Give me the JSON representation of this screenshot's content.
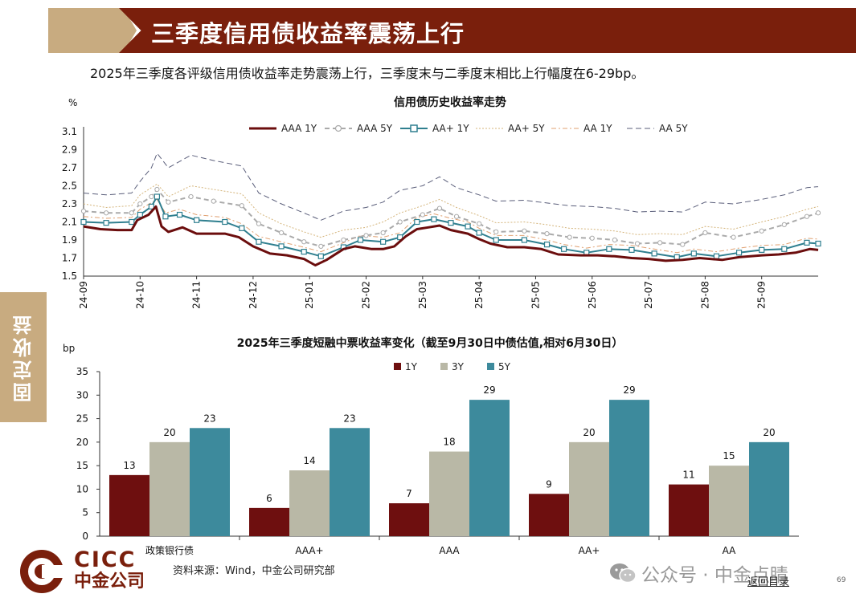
{
  "header": {
    "title": "三季度信用债收益率震荡上行",
    "subtitle": "2025年三季度各评级信用债收益率走势震荡上行，三季度末与二季度末相比上行幅度在6-29bp。"
  },
  "side_tab": {
    "label": "固定收益"
  },
  "chart_data": [
    {
      "type": "line",
      "title": "信用债历史收益率走势",
      "ylabel": "%",
      "ylim": [
        1.5,
        3.1
      ],
      "yticks": [
        "3.1",
        "2.9",
        "2.7",
        "2.5",
        "2.3",
        "2.1",
        "1.9",
        "1.7",
        "1.5"
      ],
      "xticks": [
        "24-09",
        "24-10",
        "24-11",
        "24-12",
        "25-01",
        "25-02",
        "25-03",
        "25-04",
        "25-05",
        "25-06",
        "25-07",
        "25-08",
        "25-09"
      ],
      "legend_position": "top",
      "series": [
        {
          "name": "AAA 1Y",
          "color": "#6b0d0d",
          "points": [
            [
              0,
              2.05
            ],
            [
              0.3,
              2.02
            ],
            [
              0.6,
              2.01
            ],
            [
              0.85,
              2.01
            ],
            [
              0.95,
              2.12
            ],
            [
              1.15,
              2.18
            ],
            [
              1.28,
              2.27
            ],
            [
              1.38,
              2.05
            ],
            [
              1.5,
              1.99
            ],
            [
              1.75,
              2.04
            ],
            [
              2.0,
              1.97
            ],
            [
              2.5,
              1.97
            ],
            [
              2.75,
              1.93
            ],
            [
              3.0,
              1.83
            ],
            [
              3.3,
              1.75
            ],
            [
              3.6,
              1.73
            ],
            [
              3.9,
              1.69
            ],
            [
              4.1,
              1.62
            ],
            [
              4.3,
              1.68
            ],
            [
              4.6,
              1.8
            ],
            [
              4.8,
              1.83
            ],
            [
              5.1,
              1.8
            ],
            [
              5.3,
              1.8
            ],
            [
              5.5,
              1.83
            ],
            [
              5.7,
              1.94
            ],
            [
              5.9,
              2.02
            ],
            [
              6.1,
              2.04
            ],
            [
              6.3,
              2.06
            ],
            [
              6.5,
              2.01
            ],
            [
              6.8,
              1.97
            ],
            [
              7.0,
              1.91
            ],
            [
              7.2,
              1.86
            ],
            [
              7.5,
              1.82
            ],
            [
              7.8,
              1.82
            ],
            [
              8.1,
              1.8
            ],
            [
              8.4,
              1.74
            ],
            [
              8.8,
              1.73
            ],
            [
              9.1,
              1.73
            ],
            [
              9.4,
              1.72
            ],
            [
              9.7,
              1.7
            ],
            [
              10.0,
              1.69
            ],
            [
              10.3,
              1.67
            ],
            [
              10.6,
              1.68
            ],
            [
              10.9,
              1.7
            ],
            [
              11.3,
              1.68
            ],
            [
              11.6,
              1.71
            ],
            [
              12.0,
              1.73
            ],
            [
              12.3,
              1.74
            ],
            [
              12.6,
              1.76
            ],
            [
              12.85,
              1.8
            ],
            [
              13.0,
              1.79
            ]
          ]
        },
        {
          "name": "AAA 5Y",
          "color": "#aaaaaa",
          "points": [
            [
              0,
              2.22
            ],
            [
              0.4,
              2.2
            ],
            [
              0.85,
              2.2
            ],
            [
              1.0,
              2.3
            ],
            [
              1.2,
              2.38
            ],
            [
              1.3,
              2.46
            ],
            [
              1.5,
              2.32
            ],
            [
              1.9,
              2.38
            ],
            [
              2.3,
              2.33
            ],
            [
              2.8,
              2.28
            ],
            [
              3.1,
              2.08
            ],
            [
              3.5,
              1.98
            ],
            [
              3.9,
              1.88
            ],
            [
              4.2,
              1.83
            ],
            [
              4.6,
              1.9
            ],
            [
              5.0,
              1.95
            ],
            [
              5.3,
              1.98
            ],
            [
              5.6,
              2.1
            ],
            [
              6.0,
              2.18
            ],
            [
              6.3,
              2.25
            ],
            [
              6.6,
              2.16
            ],
            [
              7.0,
              2.08
            ],
            [
              7.3,
              1.99
            ],
            [
              7.8,
              2.0
            ],
            [
              8.2,
              1.97
            ],
            [
              8.6,
              1.93
            ],
            [
              9.0,
              1.92
            ],
            [
              9.4,
              1.9
            ],
            [
              9.8,
              1.86
            ],
            [
              10.2,
              1.87
            ],
            [
              10.6,
              1.85
            ],
            [
              11.0,
              1.98
            ],
            [
              11.5,
              1.93
            ],
            [
              12.0,
              2.0
            ],
            [
              12.4,
              2.07
            ],
            [
              12.8,
              2.16
            ],
            [
              13.0,
              2.2
            ]
          ]
        },
        {
          "name": "AA+ 1Y",
          "color": "#2f7f8f",
          "points": [
            [
              0,
              2.1
            ],
            [
              0.4,
              2.09
            ],
            [
              0.85,
              2.1
            ],
            [
              1.0,
              2.18
            ],
            [
              1.2,
              2.27
            ],
            [
              1.3,
              2.38
            ],
            [
              1.45,
              2.16
            ],
            [
              1.7,
              2.18
            ],
            [
              2.0,
              2.12
            ],
            [
              2.5,
              2.1
            ],
            [
              2.8,
              2.03
            ],
            [
              3.1,
              1.88
            ],
            [
              3.5,
              1.83
            ],
            [
              3.9,
              1.77
            ],
            [
              4.2,
              1.72
            ],
            [
              4.6,
              1.82
            ],
            [
              4.9,
              1.9
            ],
            [
              5.3,
              1.88
            ],
            [
              5.6,
              1.93
            ],
            [
              5.9,
              2.1
            ],
            [
              6.2,
              2.13
            ],
            [
              6.5,
              2.09
            ],
            [
              6.8,
              2.05
            ],
            [
              7.0,
              1.98
            ],
            [
              7.3,
              1.9
            ],
            [
              7.8,
              1.9
            ],
            [
              8.2,
              1.85
            ],
            [
              8.5,
              1.8
            ],
            [
              8.9,
              1.76
            ],
            [
              9.3,
              1.8
            ],
            [
              9.7,
              1.79
            ],
            [
              10.1,
              1.75
            ],
            [
              10.5,
              1.71
            ],
            [
              10.8,
              1.75
            ],
            [
              11.2,
              1.72
            ],
            [
              11.6,
              1.76
            ],
            [
              12.0,
              1.79
            ],
            [
              12.4,
              1.8
            ],
            [
              12.8,
              1.87
            ],
            [
              13.0,
              1.86
            ]
          ]
        },
        {
          "name": "AA+ 5Y",
          "color": "#d4b47a",
          "points": [
            [
              0,
              2.3
            ],
            [
              0.4,
              2.26
            ],
            [
              0.85,
              2.28
            ],
            [
              1.0,
              2.4
            ],
            [
              1.3,
              2.52
            ],
            [
              1.5,
              2.38
            ],
            [
              1.9,
              2.5
            ],
            [
              2.3,
              2.46
            ],
            [
              2.8,
              2.41
            ],
            [
              3.1,
              2.2
            ],
            [
              3.5,
              2.08
            ],
            [
              3.9,
              1.99
            ],
            [
              4.2,
              1.93
            ],
            [
              4.6,
              2.01
            ],
            [
              5.0,
              2.04
            ],
            [
              5.3,
              2.1
            ],
            [
              5.6,
              2.2
            ],
            [
              6.0,
              2.28
            ],
            [
              6.3,
              2.35
            ],
            [
              6.6,
              2.26
            ],
            [
              7.0,
              2.17
            ],
            [
              7.3,
              2.09
            ],
            [
              7.8,
              2.1
            ],
            [
              8.2,
              2.07
            ],
            [
              8.6,
              2.03
            ],
            [
              9.0,
              2.02
            ],
            [
              9.4,
              2.0
            ],
            [
              9.8,
              1.96
            ],
            [
              10.2,
              1.97
            ],
            [
              10.6,
              1.96
            ],
            [
              11.0,
              2.05
            ],
            [
              11.5,
              2.02
            ],
            [
              12.0,
              2.1
            ],
            [
              12.4,
              2.16
            ],
            [
              12.8,
              2.24
            ],
            [
              13.0,
              2.27
            ]
          ]
        },
        {
          "name": "AA 1Y",
          "color": "#e0a070",
          "points": [
            [
              0,
              2.16
            ],
            [
              0.4,
              2.14
            ],
            [
              0.85,
              2.15
            ],
            [
              1.0,
              2.24
            ],
            [
              1.3,
              2.35
            ],
            [
              1.45,
              2.2
            ],
            [
              1.7,
              2.24
            ],
            [
              2.0,
              2.18
            ],
            [
              2.5,
              2.15
            ],
            [
              2.8,
              2.08
            ],
            [
              3.1,
              1.94
            ],
            [
              3.5,
              1.88
            ],
            [
              3.9,
              1.82
            ],
            [
              4.2,
              1.77
            ],
            [
              4.6,
              1.87
            ],
            [
              4.9,
              1.95
            ],
            [
              5.3,
              1.93
            ],
            [
              5.6,
              1.98
            ],
            [
              5.9,
              2.15
            ],
            [
              6.2,
              2.19
            ],
            [
              6.5,
              2.14
            ],
            [
              6.8,
              2.1
            ],
            [
              7.0,
              2.03
            ],
            [
              7.3,
              1.95
            ],
            [
              7.8,
              1.95
            ],
            [
              8.2,
              1.9
            ],
            [
              8.5,
              1.85
            ],
            [
              8.9,
              1.81
            ],
            [
              9.3,
              1.85
            ],
            [
              9.7,
              1.84
            ],
            [
              10.1,
              1.8
            ],
            [
              10.5,
              1.76
            ],
            [
              10.8,
              1.8
            ],
            [
              11.2,
              1.77
            ],
            [
              11.6,
              1.81
            ],
            [
              12.0,
              1.84
            ],
            [
              12.4,
              1.85
            ],
            [
              12.8,
              1.92
            ],
            [
              13.0,
              1.91
            ]
          ]
        },
        {
          "name": "AA 5Y",
          "color": "#5a5e7a",
          "points": [
            [
              0,
              2.42
            ],
            [
              0.4,
              2.4
            ],
            [
              0.85,
              2.42
            ],
            [
              1.0,
              2.55
            ],
            [
              1.2,
              2.7
            ],
            [
              1.3,
              2.86
            ],
            [
              1.5,
              2.7
            ],
            [
              1.9,
              2.84
            ],
            [
              2.3,
              2.78
            ],
            [
              2.8,
              2.72
            ],
            [
              3.1,
              2.42
            ],
            [
              3.5,
              2.3
            ],
            [
              3.9,
              2.2
            ],
            [
              4.2,
              2.12
            ],
            [
              4.6,
              2.22
            ],
            [
              5.0,
              2.26
            ],
            [
              5.3,
              2.32
            ],
            [
              5.6,
              2.45
            ],
            [
              6.0,
              2.5
            ],
            [
              6.3,
              2.6
            ],
            [
              6.6,
              2.48
            ],
            [
              7.0,
              2.4
            ],
            [
              7.3,
              2.33
            ],
            [
              7.8,
              2.34
            ],
            [
              8.2,
              2.31
            ],
            [
              8.6,
              2.28
            ],
            [
              9.0,
              2.27
            ],
            [
              9.4,
              2.25
            ],
            [
              9.8,
              2.21
            ],
            [
              10.2,
              2.22
            ],
            [
              10.6,
              2.21
            ],
            [
              11.0,
              2.32
            ],
            [
              11.5,
              2.3
            ],
            [
              12.0,
              2.35
            ],
            [
              12.4,
              2.4
            ],
            [
              12.8,
              2.48
            ],
            [
              13.0,
              2.49
            ]
          ]
        }
      ]
    },
    {
      "type": "bar",
      "title": "2025年三季度短融中票收益率变化（截至9月30日中债估值,相对6月30日）",
      "ylabel": "bp",
      "ylim": [
        0,
        35
      ],
      "yticks": [
        "35",
        "30",
        "25",
        "20",
        "15",
        "10",
        "5",
        "0"
      ],
      "categories": [
        "政策银行债",
        "AAA+",
        "AAA",
        "AA+",
        "AA"
      ],
      "legend_position": "top",
      "series": [
        {
          "name": "1Y",
          "color": "#6e0f0f",
          "values": [
            13,
            6,
            7,
            9,
            11
          ]
        },
        {
          "name": "3Y",
          "color": "#b9b8a6",
          "values": [
            20,
            14,
            18,
            20,
            15
          ]
        },
        {
          "name": "5Y",
          "color": "#3d8a9c",
          "values": [
            23,
            23,
            29,
            29,
            20
          ]
        }
      ]
    }
  ],
  "footer": {
    "logo_en": "CICC",
    "logo_cn": "中金公司",
    "source": "资料来源：Wind，中金公司研究部",
    "watermark": "公众号 · 中金点睛",
    "back_link": "返回目录",
    "page_number": "69"
  },
  "icons": {
    "logo": "cicc-logo-icon",
    "wechat": "wechat-icon"
  },
  "colors": {
    "brand_red": "#7a1f0c",
    "brand_tan": "#c8ab80"
  }
}
